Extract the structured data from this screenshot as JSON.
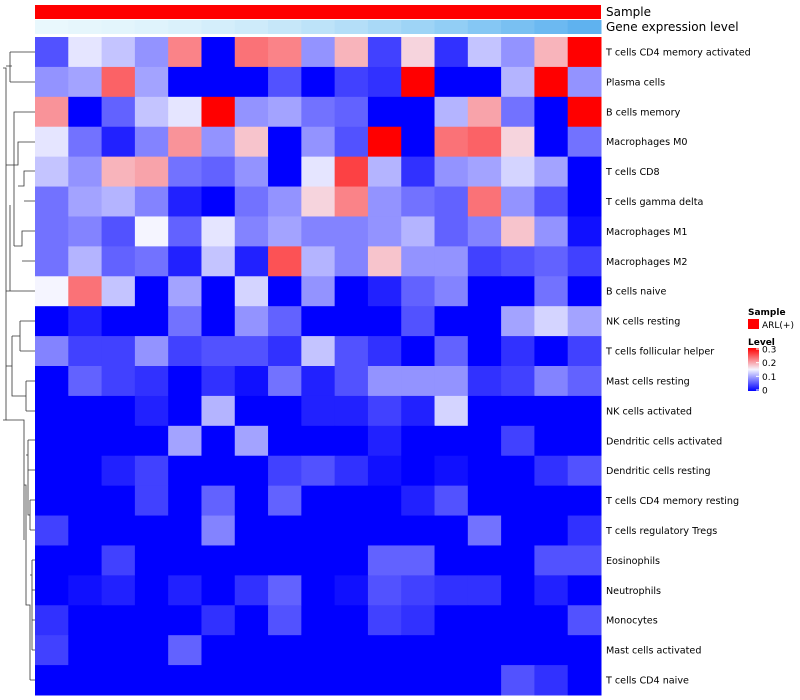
{
  "chart_data": {
    "type": "heatmap",
    "title": "",
    "annotation_labels": [
      "Sample",
      "Gene expression level"
    ],
    "annotation_sample_color": "#ff0000",
    "annotation_expression_colors": [
      "#e9f8fd",
      "#e6f6fc",
      "#e3f5fc",
      "#dff3fc",
      "#daf1fb",
      "#d4eefb",
      "#ceebfa",
      "#c6e7f9",
      "#bde3f9",
      "#b4def8",
      "#a9d9f7",
      "#9ed4f6",
      "#92cef5",
      "#85c7f4",
      "#79c0f2",
      "#6cb9f1",
      "#5fb2ef"
    ],
    "rows": [
      "T cells CD4 memory activated",
      "Plasma cells",
      "B cells memory",
      "Macrophages M0",
      "T cells CD8",
      "T cells gamma delta",
      "Macrophages M1",
      "Macrophages M2",
      "B cells naive",
      "NK cells resting",
      "T cells follicular helper",
      "Mast cells resting",
      "NK cells activated",
      "Dendritic cells activated",
      "Dendritic cells resting",
      "T cells CD4 memory resting",
      "T cells regulatory  Tregs",
      "Eosinophils",
      "Neutrophils",
      "Monocytes",
      "Mast cells activated",
      "T cells CD4 naive"
    ],
    "n_columns": 17,
    "values": [
      [
        0.05,
        0.14,
        0.12,
        0.09,
        0.22,
        0.0,
        0.23,
        0.22,
        0.09,
        0.19,
        0.04,
        0.17,
        0.03,
        0.12,
        0.09,
        0.19,
        0.3
      ],
      [
        0.09,
        0.1,
        0.24,
        0.1,
        0.0,
        0.0,
        0.0,
        0.05,
        0.0,
        0.04,
        0.03,
        0.3,
        0.0,
        0.0,
        0.11,
        0.3,
        0.09
      ],
      [
        0.21,
        0.0,
        0.06,
        0.12,
        0.14,
        0.3,
        0.09,
        0.1,
        0.07,
        0.06,
        0.0,
        0.0,
        0.11,
        0.2,
        0.07,
        0.0,
        0.3
      ],
      [
        0.14,
        0.07,
        0.02,
        0.08,
        0.21,
        0.09,
        0.18,
        0.0,
        0.09,
        0.05,
        0.3,
        0.0,
        0.23,
        0.24,
        0.17,
        0.0,
        0.07
      ],
      [
        0.12,
        0.09,
        0.19,
        0.2,
        0.07,
        0.06,
        0.09,
        0.0,
        0.14,
        0.26,
        0.11,
        0.03,
        0.09,
        0.1,
        0.13,
        0.1,
        0.0
      ],
      [
        0.07,
        0.1,
        0.11,
        0.08,
        0.02,
        0.0,
        0.07,
        0.09,
        0.17,
        0.22,
        0.09,
        0.07,
        0.06,
        0.23,
        0.09,
        0.05,
        0.0
      ],
      [
        0.07,
        0.08,
        0.05,
        0.15,
        0.06,
        0.14,
        0.08,
        0.1,
        0.08,
        0.08,
        0.09,
        0.11,
        0.06,
        0.08,
        0.18,
        0.09,
        0.01
      ],
      [
        0.07,
        0.11,
        0.06,
        0.07,
        0.02,
        0.12,
        0.02,
        0.25,
        0.11,
        0.08,
        0.18,
        0.09,
        0.09,
        0.04,
        0.05,
        0.06,
        0.04
      ],
      [
        0.15,
        0.23,
        0.12,
        0.0,
        0.1,
        0.0,
        0.13,
        0.0,
        0.09,
        0.0,
        0.02,
        0.06,
        0.08,
        0.0,
        0.0,
        0.07,
        0.0
      ],
      [
        0.0,
        0.02,
        0.0,
        0.0,
        0.07,
        0.0,
        0.09,
        0.06,
        0.0,
        0.0,
        0.0,
        0.05,
        0.0,
        0.0,
        0.1,
        0.13,
        0.1
      ],
      [
        0.08,
        0.04,
        0.04,
        0.09,
        0.04,
        0.05,
        0.05,
        0.03,
        0.12,
        0.05,
        0.03,
        0.0,
        0.06,
        0.0,
        0.03,
        0.0,
        0.04
      ],
      [
        0.0,
        0.06,
        0.04,
        0.03,
        0.0,
        0.03,
        0.01,
        0.07,
        0.02,
        0.05,
        0.09,
        0.09,
        0.09,
        0.03,
        0.04,
        0.08,
        0.06
      ],
      [
        0.0,
        0.0,
        0.0,
        0.02,
        0.0,
        0.11,
        0.0,
        0.0,
        0.02,
        0.02,
        0.04,
        0.02,
        0.13,
        0.0,
        0.0,
        0.0,
        0.0
      ],
      [
        0.0,
        0.0,
        0.0,
        0.0,
        0.1,
        0.0,
        0.1,
        0.0,
        0.0,
        0.0,
        0.02,
        0.0,
        0.0,
        0.0,
        0.04,
        0.0,
        0.0
      ],
      [
        0.0,
        0.0,
        0.02,
        0.04,
        0.0,
        0.0,
        0.0,
        0.04,
        0.05,
        0.03,
        0.01,
        0.0,
        0.01,
        0.0,
        0.0,
        0.03,
        0.05
      ],
      [
        0.0,
        0.0,
        0.0,
        0.04,
        0.0,
        0.06,
        0.0,
        0.06,
        0.0,
        0.0,
        0.0,
        0.02,
        0.05,
        0.0,
        0.0,
        0.0,
        0.0
      ],
      [
        0.04,
        0.0,
        0.0,
        0.0,
        0.0,
        0.08,
        0.0,
        0.0,
        0.0,
        0.0,
        0.0,
        0.0,
        0.0,
        0.07,
        0.0,
        0.0,
        0.03
      ],
      [
        0.0,
        0.0,
        0.04,
        0.0,
        0.0,
        0.0,
        0.0,
        0.0,
        0.0,
        0.0,
        0.06,
        0.06,
        0.0,
        0.0,
        0.0,
        0.05,
        0.05
      ],
      [
        0.0,
        0.01,
        0.02,
        0.0,
        0.02,
        0.0,
        0.03,
        0.06,
        0.0,
        0.01,
        0.05,
        0.04,
        0.03,
        0.03,
        0.0,
        0.02,
        0.0
      ],
      [
        0.03,
        0.0,
        0.0,
        0.0,
        0.0,
        0.03,
        0.0,
        0.05,
        0.0,
        0.0,
        0.04,
        0.03,
        0.0,
        0.0,
        0.0,
        0.0,
        0.05
      ],
      [
        0.04,
        0.0,
        0.0,
        0.0,
        0.06,
        0.0,
        0.0,
        0.0,
        0.0,
        0.0,
        0.0,
        0.0,
        0.0,
        0.0,
        0.0,
        0.0,
        0.0
      ],
      [
        0.0,
        0.0,
        0.0,
        0.0,
        0.0,
        0.0,
        0.0,
        0.0,
        0.0,
        0.0,
        0.0,
        0.0,
        0.0,
        0.0,
        0.05,
        0.03,
        0.0
      ]
    ],
    "color_scale": {
      "min": 0,
      "mid": 0.15,
      "max": 0.3,
      "low_color": "#0000ff",
      "mid_color": "#f5f5ff",
      "high_color": "#ff0000"
    },
    "legend": {
      "sample_title": "Sample",
      "sample_item": "ARL(+)",
      "sample_color": "#ff0000",
      "level_title": "Level",
      "level_ticks": [
        {
          "value": 0.3,
          "label": "0.3"
        },
        {
          "value": 0.2,
          "label": "0.2"
        },
        {
          "value": 0.1,
          "label": "0.1"
        },
        {
          "value": 0,
          "label": "0"
        }
      ],
      "placement": "right"
    },
    "dendrogram": "left"
  }
}
